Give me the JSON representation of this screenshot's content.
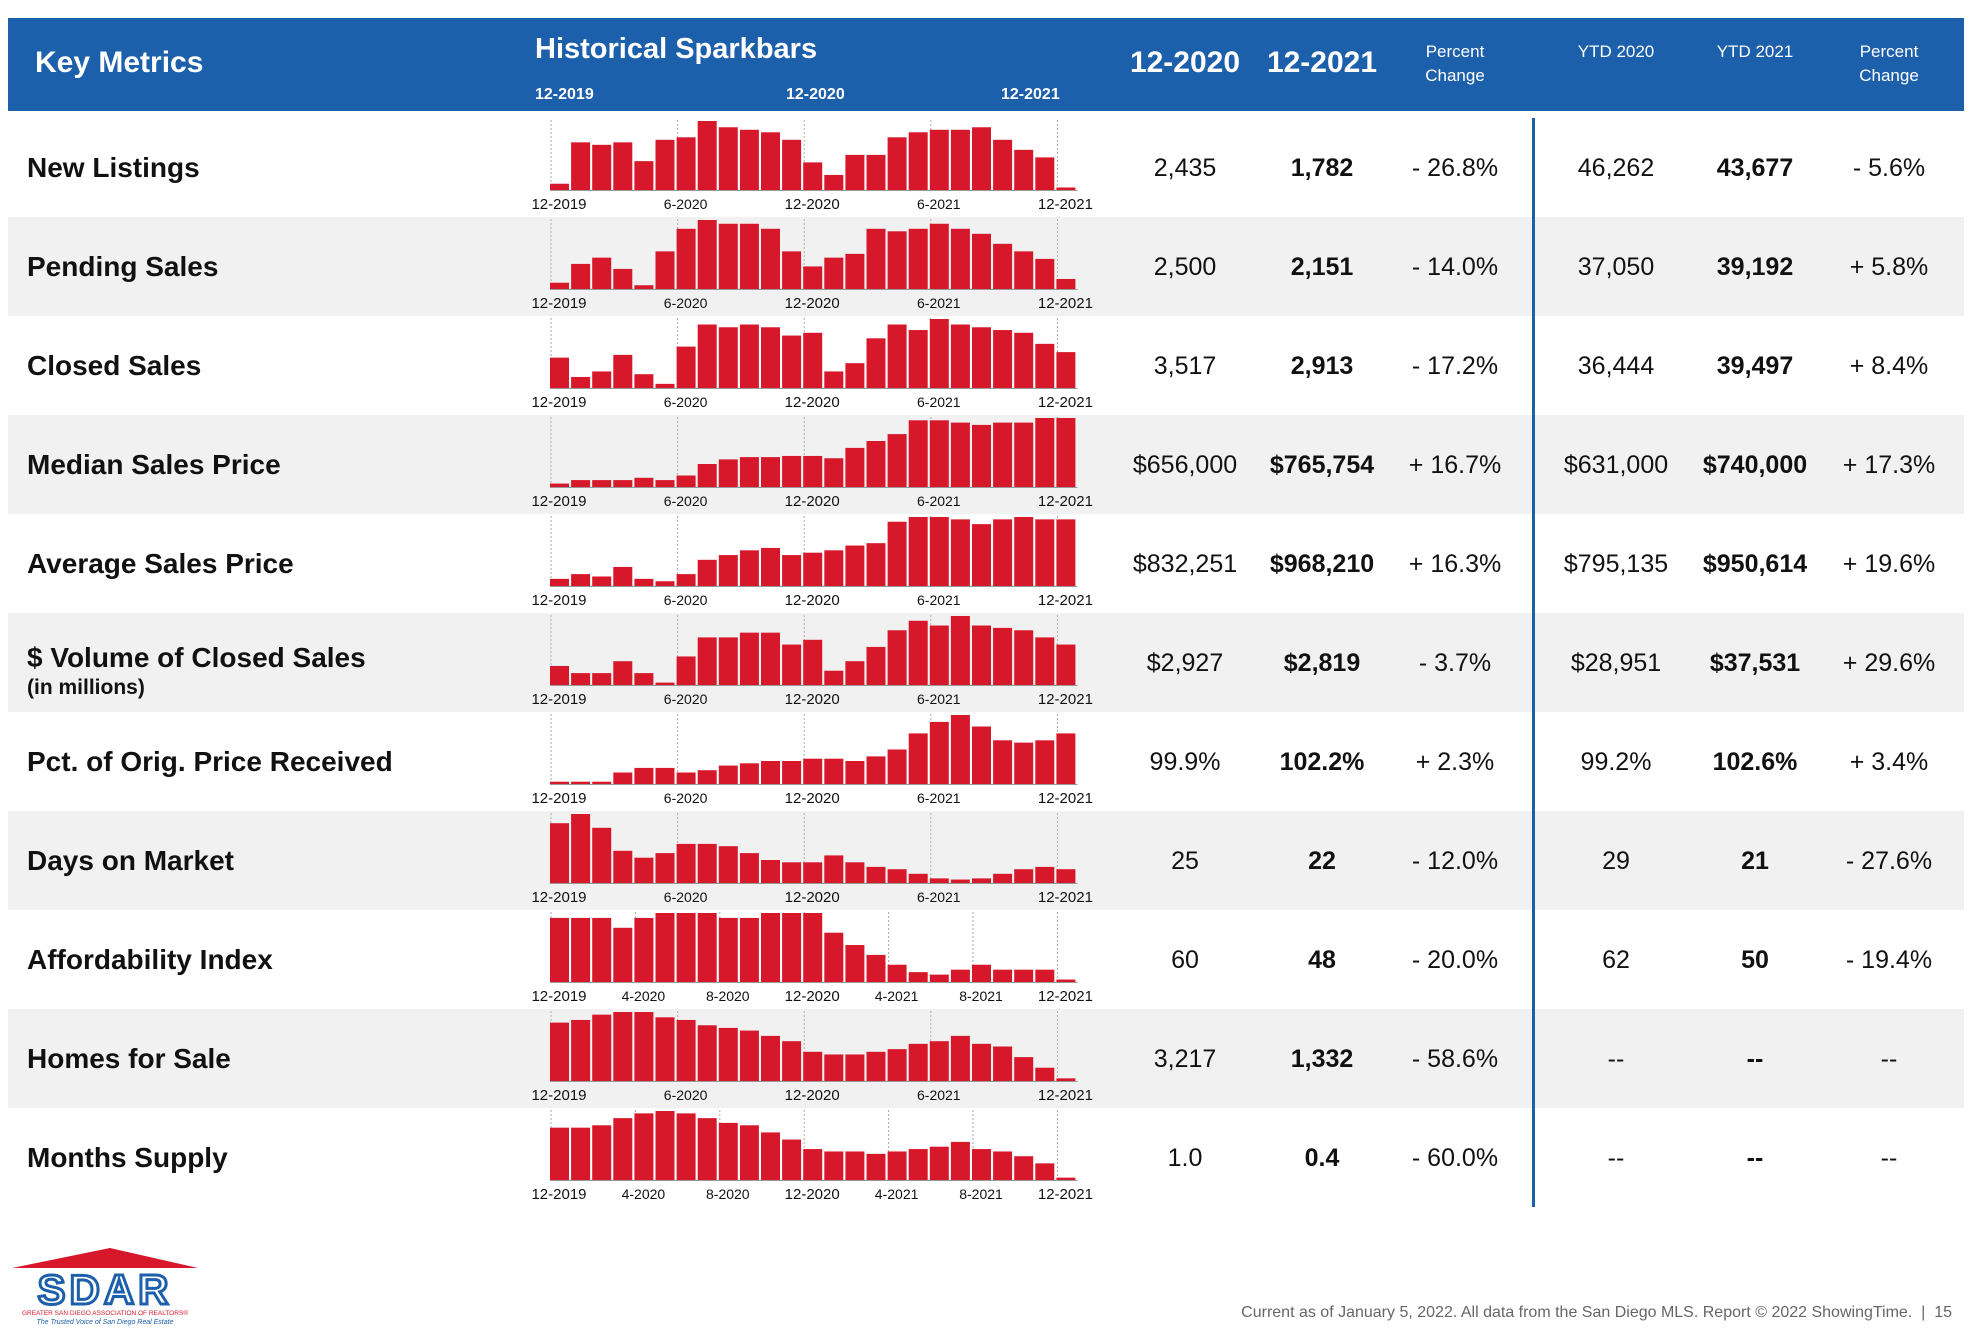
{
  "header": {
    "title": "Key Metrics",
    "sparkbars_title": "Historical Sparkbars",
    "sparkbar_labels": [
      "12-2019",
      "12-2020",
      "12-2021"
    ],
    "columns": [
      "12-2020",
      "12-2021",
      "Percent Change",
      "YTD 2020",
      "YTD 2021",
      "Percent Change"
    ]
  },
  "rows": [
    {
      "label": "New Listings",
      "sparkbars": {
        "months": [
          "12-2019",
          null,
          null,
          null,
          null,
          null,
          "6-2020",
          null,
          null,
          null,
          null,
          null,
          "12-2020",
          null,
          null,
          null,
          null,
          null,
          "6-2021",
          null,
          null,
          null,
          null,
          null,
          "12-2021"
        ],
        "values": [
          5,
          38,
          36,
          38,
          23,
          40,
          42,
          55,
          50,
          48,
          46,
          40,
          22,
          12,
          28,
          28,
          42,
          46,
          48,
          48,
          50,
          40,
          32,
          26,
          2
        ]
      },
      "values": [
        "2,435",
        "1,782",
        "- 26.8%",
        "46,262",
        "43,677",
        "- 5.6%"
      ]
    },
    {
      "label": "Pending Sales",
      "sparkbars": {
        "months": [
          "12-2019",
          null,
          null,
          null,
          null,
          null,
          "6-2020",
          null,
          null,
          null,
          null,
          null,
          "12-2020",
          null,
          null,
          null,
          null,
          null,
          "6-2021",
          null,
          null,
          null,
          null,
          null,
          "12-2021"
        ],
        "values": [
          5,
          20,
          25,
          16,
          3,
          30,
          48,
          55,
          52,
          52,
          48,
          30,
          18,
          25,
          28,
          48,
          46,
          48,
          52,
          48,
          44,
          36,
          30,
          24,
          8
        ]
      },
      "values": [
        "2,500",
        "2,151",
        "- 14.0%",
        "37,050",
        "39,192",
        "+ 5.8%"
      ]
    },
    {
      "label": "Closed Sales",
      "sparkbars": {
        "months": [
          "12-2019",
          null,
          null,
          null,
          null,
          null,
          "6-2020",
          null,
          null,
          null,
          null,
          null,
          "12-2020",
          null,
          null,
          null,
          null,
          null,
          "6-2021",
          null,
          null,
          null,
          null,
          null,
          "12-2021"
        ],
        "values": [
          22,
          8,
          12,
          24,
          10,
          3,
          30,
          46,
          44,
          46,
          44,
          38,
          40,
          12,
          18,
          36,
          46,
          42,
          50,
          46,
          44,
          42,
          40,
          32,
          26
        ]
      },
      "values": [
        "3,517",
        "2,913",
        "- 17.2%",
        "36,444",
        "39,497",
        "+ 8.4%"
      ]
    },
    {
      "label": "Median Sales Price",
      "sparkbars": {
        "months": [
          "12-2019",
          null,
          null,
          null,
          null,
          null,
          "6-2020",
          null,
          null,
          null,
          null,
          null,
          "12-2020",
          null,
          null,
          null,
          null,
          null,
          "6-2021",
          null,
          null,
          null,
          null,
          null,
          "12-2021"
        ],
        "values": [
          3,
          6,
          6,
          6,
          8,
          6,
          10,
          20,
          24,
          26,
          26,
          27,
          27,
          25,
          34,
          40,
          46,
          58,
          58,
          56,
          54,
          56,
          56,
          60,
          60
        ]
      },
      "values": [
        "$656,000",
        "$765,754",
        "+ 16.7%",
        "$631,000",
        "$740,000",
        "+ 17.3%"
      ]
    },
    {
      "label": "Average Sales Price",
      "sparkbars": {
        "months": [
          "12-2019",
          null,
          null,
          null,
          null,
          null,
          "6-2020",
          null,
          null,
          null,
          null,
          null,
          "12-2020",
          null,
          null,
          null,
          null,
          null,
          "6-2021",
          null,
          null,
          null,
          null,
          null,
          "12-2021"
        ],
        "values": [
          6,
          10,
          8,
          16,
          6,
          4,
          10,
          22,
          26,
          30,
          32,
          26,
          28,
          30,
          34,
          36,
          54,
          58,
          58,
          56,
          52,
          56,
          58,
          56,
          56
        ]
      },
      "values": [
        "$832,251",
        "$968,210",
        "+ 16.3%",
        "$795,135",
        "$950,614",
        "+ 19.6%"
      ]
    },
    {
      "label": "$ Volume of Closed Sales",
      "sublabel": "(in millions)",
      "sparkbars": {
        "months": [
          "12-2019",
          null,
          null,
          null,
          null,
          null,
          "6-2020",
          null,
          null,
          null,
          null,
          null,
          "12-2020",
          null,
          null,
          null,
          null,
          null,
          "6-2021",
          null,
          null,
          null,
          null,
          null,
          "12-2021"
        ],
        "values": [
          16,
          10,
          10,
          20,
          10,
          2,
          24,
          40,
          40,
          44,
          44,
          34,
          38,
          12,
          20,
          32,
          46,
          54,
          50,
          58,
          50,
          48,
          46,
          40,
          34
        ]
      },
      "values": [
        "$2,927",
        "$2,819",
        "- 3.7%",
        "$28,951",
        "$37,531",
        "+ 29.6%"
      ]
    },
    {
      "label": "Pct. of Orig. Price Received",
      "sparkbars": {
        "months": [
          "12-2019",
          null,
          null,
          null,
          null,
          null,
          "6-2020",
          null,
          null,
          null,
          null,
          null,
          "12-2020",
          null,
          null,
          null,
          null,
          null,
          "6-2021",
          null,
          null,
          null,
          null,
          null,
          "12-2021"
        ],
        "values": [
          2,
          2,
          2,
          10,
          14,
          14,
          10,
          12,
          16,
          18,
          20,
          20,
          22,
          22,
          20,
          24,
          30,
          44,
          54,
          60,
          50,
          38,
          36,
          38,
          44
        ]
      },
      "values": [
        "99.9%",
        "102.2%",
        "+ 2.3%",
        "99.2%",
        "102.6%",
        "+ 3.4%"
      ]
    },
    {
      "label": "Days on Market",
      "sparkbars": {
        "months": [
          "12-2019",
          null,
          null,
          null,
          null,
          null,
          "6-2020",
          null,
          null,
          null,
          null,
          null,
          "12-2020",
          null,
          null,
          null,
          null,
          null,
          "6-2021",
          null,
          null,
          null,
          null,
          null,
          "12-2021"
        ],
        "values": [
          52,
          60,
          48,
          28,
          22,
          26,
          34,
          34,
          32,
          26,
          20,
          18,
          18,
          24,
          18,
          14,
          12,
          8,
          4,
          3,
          4,
          8,
          12,
          14,
          12
        ]
      },
      "values": [
        "25",
        "22",
        "- 12.0%",
        "29",
        "21",
        "- 27.6%"
      ]
    },
    {
      "label": "Affordability Index",
      "sparkbars": {
        "months": [
          "12-2019",
          null,
          null,
          null,
          "4-2020",
          null,
          null,
          null,
          "8-2020",
          null,
          null,
          null,
          "12-2020",
          null,
          null,
          null,
          "4-2021",
          null,
          null,
          null,
          "8-2021",
          null,
          null,
          null,
          "12-2021"
        ],
        "values": [
          52,
          52,
          52,
          44,
          52,
          56,
          56,
          56,
          52,
          52,
          56,
          56,
          56,
          40,
          30,
          22,
          14,
          8,
          6,
          10,
          14,
          10,
          10,
          10,
          2
        ]
      },
      "values": [
        "60",
        "48",
        "- 20.0%",
        "62",
        "50",
        "- 19.4%"
      ]
    },
    {
      "label": "Homes for Sale",
      "sparkbars": {
        "months": [
          "12-2019",
          null,
          null,
          null,
          null,
          null,
          "6-2020",
          null,
          null,
          null,
          null,
          null,
          "12-2020",
          null,
          null,
          null,
          null,
          null,
          "6-2021",
          null,
          null,
          null,
          null,
          null,
          "12-2021"
        ],
        "values": [
          44,
          46,
          50,
          52,
          52,
          48,
          46,
          42,
          40,
          38,
          34,
          30,
          22,
          20,
          20,
          22,
          24,
          28,
          30,
          34,
          28,
          26,
          18,
          10,
          2
        ]
      },
      "values": [
        "3,217",
        "1,332",
        "- 58.6%",
        "--",
        "--",
        "--"
      ]
    },
    {
      "label": "Months Supply",
      "sparkbars": {
        "months": [
          "12-2019",
          null,
          null,
          null,
          "4-2020",
          null,
          null,
          null,
          "8-2020",
          null,
          null,
          null,
          "12-2020",
          null,
          null,
          null,
          "4-2021",
          null,
          null,
          null,
          "8-2021",
          null,
          null,
          null,
          "12-2021"
        ],
        "values": [
          44,
          44,
          46,
          52,
          56,
          58,
          56,
          52,
          48,
          46,
          40,
          34,
          26,
          24,
          24,
          22,
          24,
          26,
          28,
          32,
          26,
          24,
          20,
          14,
          2
        ]
      },
      "values": [
        "1.0",
        "0.4",
        "- 60.0%",
        "--",
        "--",
        "--"
      ]
    }
  ],
  "logo": {
    "name": "SDAR",
    "org": "GREATER SAN DIEGO ASSOCIATION OF REALTORS®",
    "tagline": "The Trusted Voice of San Diego Real Estate"
  },
  "footer": "Current as of January 5, 2022. All data from the San Diego MLS. Report © 2022 ShowingTime.  |  15"
}
